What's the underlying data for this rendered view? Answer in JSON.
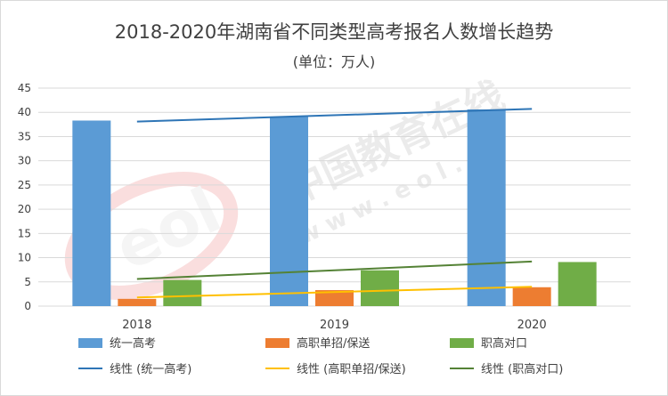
{
  "title": "2018-2020年湖南省不同类型高考报名人数增长趋势",
  "subtitle": "(单位：万人)",
  "watermark": {
    "text_cn": "中国教育在线",
    "url": "w w w . e o l . c n",
    "logo": "eol"
  },
  "chart_data": {
    "type": "bar",
    "categories": [
      "2018",
      "2019",
      "2020"
    ],
    "ylim": [
      0,
      45
    ],
    "yticks": [
      0,
      5,
      10,
      15,
      20,
      25,
      30,
      35,
      40,
      45
    ],
    "grid": true,
    "legend_position": "bottom",
    "series": [
      {
        "name": "统一高考",
        "values": [
          38.3,
          39.1,
          40.6
        ],
        "color": "#5b9bd5"
      },
      {
        "name": "高职单招/保送",
        "values": [
          1.5,
          3.3,
          3.9
        ],
        "color": "#ed7d31"
      },
      {
        "name": "职高对口",
        "values": [
          5.4,
          7.4,
          9.1
        ],
        "color": "#70ad47"
      }
    ],
    "trendlines": [
      {
        "name": "线性 (统一高考)",
        "start": 38.1,
        "end": 40.7,
        "color": "#2e75b6"
      },
      {
        "name": "线性 (高职单招/保送)",
        "start": 1.8,
        "end": 4.0,
        "color": "#ffc000"
      },
      {
        "name": "线性 (职高对口)",
        "start": 5.6,
        "end": 9.2,
        "color": "#548235"
      }
    ]
  }
}
